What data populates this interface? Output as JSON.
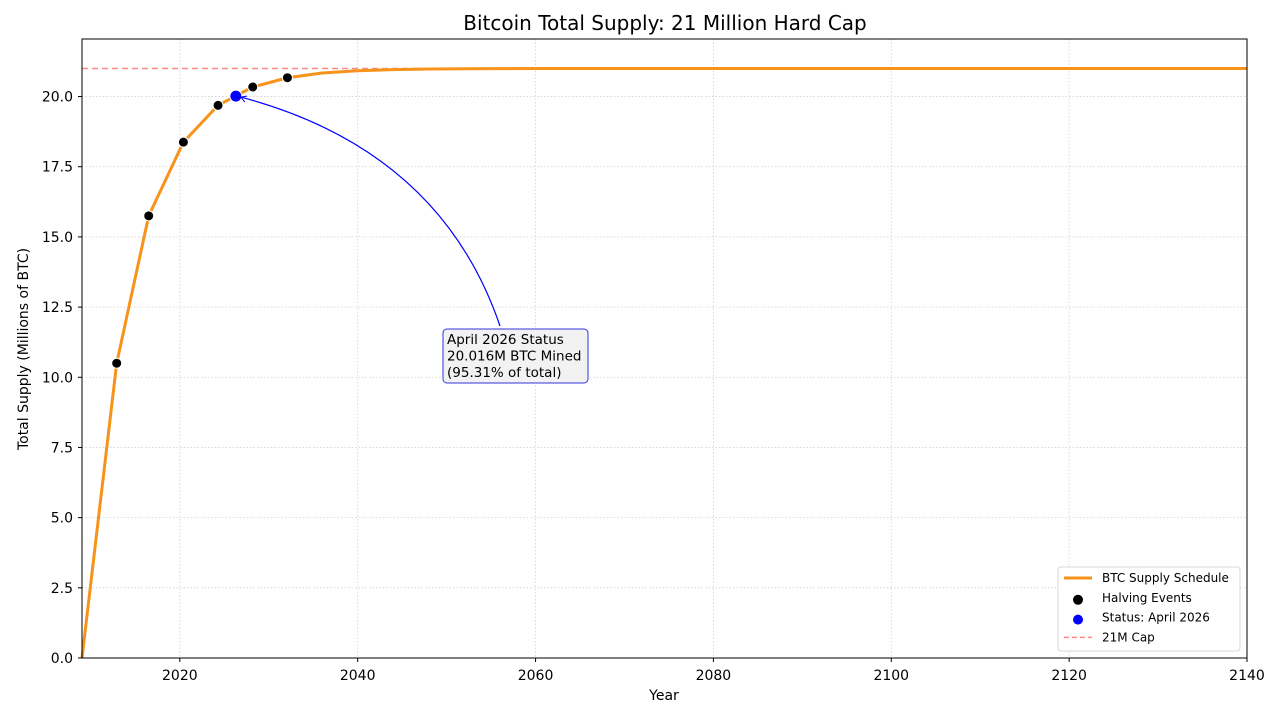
{
  "chart_data": {
    "type": "line",
    "title": "Bitcoin Total Supply: 21 Million Hard Cap",
    "xlabel": "Year",
    "ylabel": "Total Supply (Millions of BTC)",
    "xlim": [
      2009,
      2140
    ],
    "ylim": [
      0,
      22.05
    ],
    "grid": true,
    "x_ticks": [
      2020,
      2040,
      2060,
      2080,
      2100,
      2120,
      2140
    ],
    "y_ticks": [
      0.0,
      2.5,
      5.0,
      7.5,
      10.0,
      12.5,
      15.0,
      17.5,
      20.0
    ],
    "y_tick_labels": [
      "0.0",
      "2.5",
      "5.0",
      "7.5",
      "10.0",
      "12.5",
      "15.0",
      "17.5",
      "20.0"
    ],
    "series": [
      {
        "name": "BTC Supply Schedule",
        "kind": "line",
        "color": "#f7931a",
        "x": [
          2009,
          2012.9,
          2016.5,
          2020.4,
          2024.3,
          2028.2,
          2032.1,
          2036,
          2040,
          2044,
          2048,
          2052,
          2056,
          2060,
          2070,
          2080,
          2100,
          2120,
          2140
        ],
        "y": [
          0,
          10.5,
          15.75,
          18.375,
          19.6875,
          20.34,
          20.67,
          20.84,
          20.92,
          20.96,
          20.98,
          20.99,
          20.995,
          20.998,
          20.9995,
          21.0,
          21.0,
          21.0,
          21.0
        ]
      },
      {
        "name": "Halving Events",
        "kind": "scatter",
        "color": "#000000",
        "x": [
          2012.9,
          2016.5,
          2020.4,
          2024.3,
          2028.2,
          2032.1
        ],
        "y": [
          10.5,
          15.75,
          18.375,
          19.6875,
          20.34,
          20.67
        ]
      },
      {
        "name": "Status: April 2026",
        "kind": "scatter",
        "color": "#0000ff",
        "x": [
          2026.3
        ],
        "y": [
          20.016
        ]
      },
      {
        "name": "21M Cap",
        "kind": "hline",
        "color": "#ff8a80",
        "y": 21
      }
    ],
    "annotation": {
      "lines": [
        "April 2026 Status",
        "20.016M BTC Mined",
        "(95.31% of total)"
      ],
      "point": [
        2026.3,
        20.016
      ],
      "text_anchor_data": [
        2050.2,
        11.3
      ],
      "arrow_color": "#0000ff"
    },
    "legend": {
      "position": "bottom-right",
      "entries": [
        "BTC Supply Schedule",
        "Halving Events",
        "Status: April 2026",
        "21M Cap"
      ]
    }
  }
}
